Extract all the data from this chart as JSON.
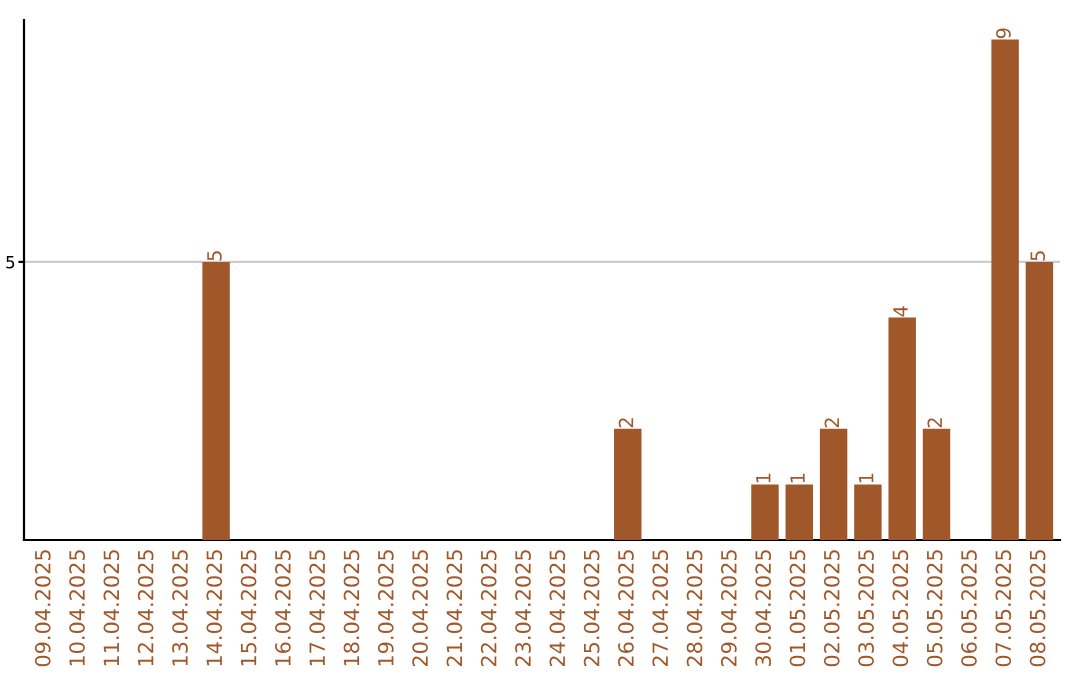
{
  "chart_data": {
    "type": "bar",
    "categories": [
      "09.04.2025",
      "10.04.2025",
      "11.04.2025",
      "12.04.2025",
      "13.04.2025",
      "14.04.2025",
      "15.04.2025",
      "16.04.2025",
      "17.04.2025",
      "18.04.2025",
      "19.04.2025",
      "20.04.2025",
      "21.04.2025",
      "22.04.2025",
      "23.04.2025",
      "24.04.2025",
      "25.04.2025",
      "26.04.2025",
      "27.04.2025",
      "28.04.2025",
      "29.04.2025",
      "30.04.2025",
      "01.05.2025",
      "02.05.2025",
      "03.05.2025",
      "04.05.2025",
      "05.05.2025",
      "06.05.2025",
      "07.05.2025",
      "08.05.2025"
    ],
    "values": [
      0,
      0,
      0,
      0,
      0,
      5,
      0,
      0,
      0,
      0,
      0,
      0,
      0,
      0,
      0,
      0,
      0,
      2,
      0,
      0,
      0,
      1,
      1,
      2,
      1,
      4,
      2,
      0,
      9,
      5
    ],
    "value_labels": [
      null,
      null,
      null,
      null,
      null,
      "5",
      null,
      null,
      null,
      null,
      null,
      null,
      null,
      null,
      null,
      null,
      null,
      "2",
      null,
      null,
      null,
      "1",
      "1",
      "2",
      "1",
      "4",
      "2",
      null,
      "9",
      "5"
    ],
    "color": "#a0582a",
    "ylim": [
      0,
      9.35
    ],
    "yticks": [
      5
    ],
    "grid": "y"
  }
}
